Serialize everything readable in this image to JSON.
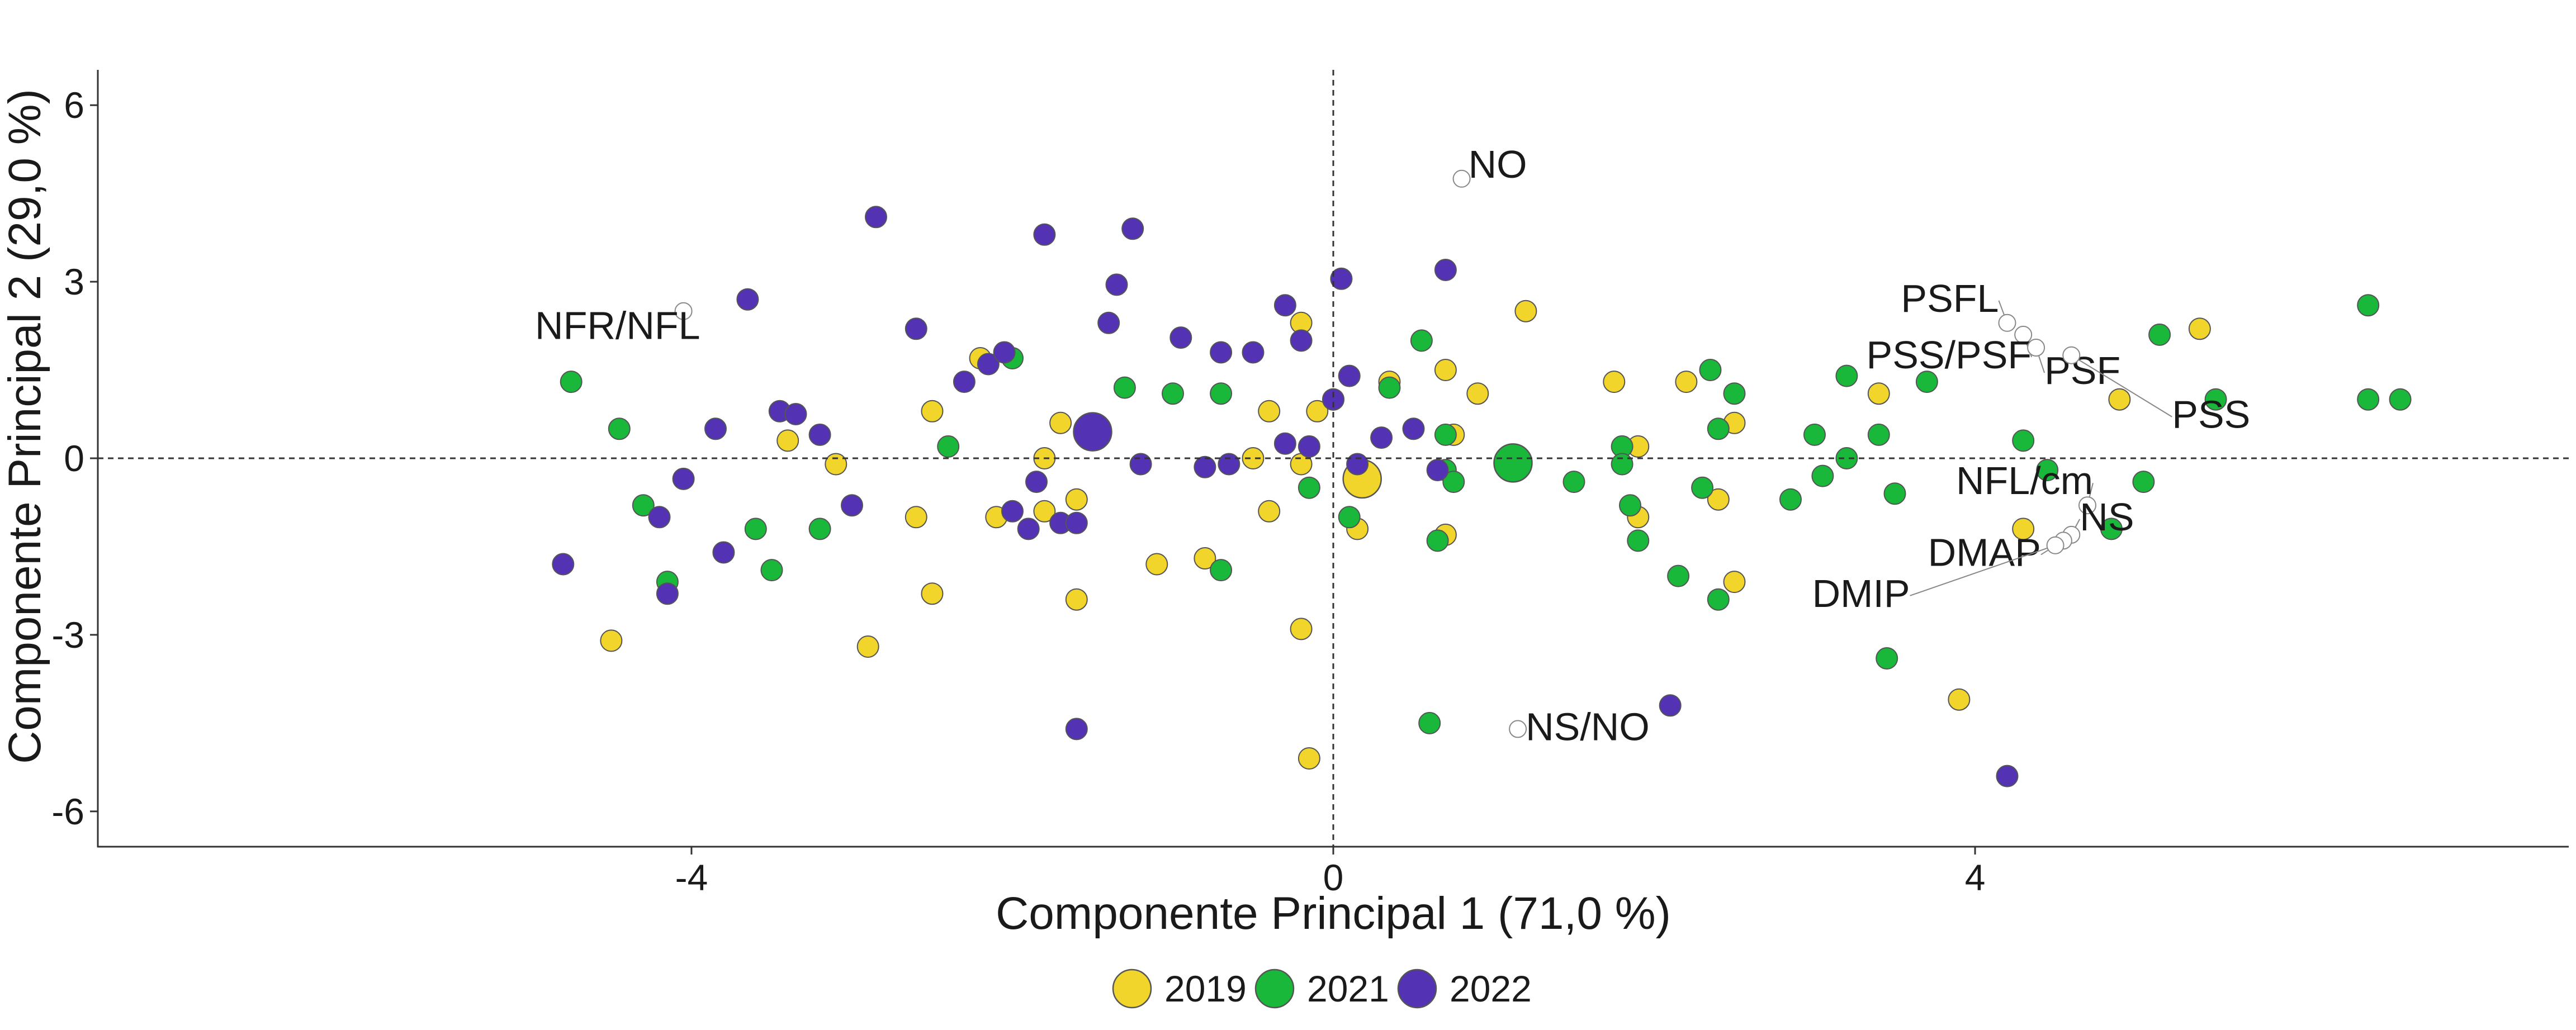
{
  "chart_data": {
    "type": "scatter",
    "title": "",
    "xlabel": "Componente Principal 1 (71,0 %)",
    "ylabel": "Componente Principal 2 (29,0 %)",
    "xlim": [
      -7.7,
      7.7
    ],
    "ylim": [
      -6.6,
      6.6
    ],
    "xticks": [
      "-4",
      "0",
      "4"
    ],
    "yticks": [
      "6",
      "3",
      "0",
      "-3",
      "-6"
    ],
    "grid": false,
    "reference_lines": {
      "x": 0,
      "y": 0
    },
    "legend": {
      "position": "bottom",
      "entries": [
        "2019",
        "2021",
        "2022"
      ]
    },
    "colors": {
      "2019": "#F2D52B",
      "2021": "#19B83A",
      "2022": "#5432B4",
      "variable_marker": "#FFFFFF",
      "marker_stroke": "#555555"
    },
    "series": [
      {
        "name": "2019",
        "color": "#F2D52B",
        "centroid": [
          0.18,
          -0.35
        ],
        "points": [
          [
            -4.5,
            -3.1
          ],
          [
            -3.4,
            0.3
          ],
          [
            -3.1,
            -0.1
          ],
          [
            -2.9,
            -3.2
          ],
          [
            -2.6,
            -1.0
          ],
          [
            -2.5,
            0.8
          ],
          [
            -2.5,
            -2.3
          ],
          [
            -2.2,
            1.7
          ],
          [
            -2.1,
            -1.0
          ],
          [
            -1.8,
            -0.9
          ],
          [
            -1.8,
            0.0
          ],
          [
            -1.7,
            0.6
          ],
          [
            -1.6,
            -0.7
          ],
          [
            -1.6,
            -2.4
          ],
          [
            -1.1,
            -1.8
          ],
          [
            -0.8,
            -1.7
          ],
          [
            -0.5,
            0.0
          ],
          [
            -0.4,
            -0.9
          ],
          [
            -0.4,
            0.8
          ],
          [
            -0.2,
            2.3
          ],
          [
            -0.2,
            -0.1
          ],
          [
            -0.2,
            -2.9
          ],
          [
            -0.15,
            -5.1
          ],
          [
            -0.1,
            0.8
          ],
          [
            0.0,
            1.0
          ],
          [
            0.15,
            -1.2
          ],
          [
            0.35,
            1.3
          ],
          [
            0.7,
            1.5
          ],
          [
            0.7,
            -1.3
          ],
          [
            0.75,
            0.4
          ],
          [
            0.9,
            1.1
          ],
          [
            1.2,
            2.5
          ],
          [
            1.75,
            1.3
          ],
          [
            1.9,
            0.2
          ],
          [
            1.9,
            -1.0
          ],
          [
            2.2,
            1.3
          ],
          [
            2.4,
            -0.7
          ],
          [
            2.5,
            -2.1
          ],
          [
            2.5,
            0.6
          ],
          [
            3.4,
            1.1
          ],
          [
            3.9,
            -4.1
          ],
          [
            4.3,
            -1.2
          ],
          [
            4.9,
            1.0
          ],
          [
            5.4,
            2.2
          ]
        ]
      },
      {
        "name": "2021",
        "color": "#19B83A",
        "centroid": [
          1.12,
          -0.08
        ],
        "points": [
          [
            -4.75,
            1.3
          ],
          [
            -4.45,
            0.5
          ],
          [
            -4.3,
            -0.8
          ],
          [
            -4.15,
            -2.1
          ],
          [
            -3.6,
            -1.2
          ],
          [
            -3.5,
            -1.9
          ],
          [
            -3.2,
            -1.2
          ],
          [
            -2.4,
            0.2
          ],
          [
            -2.0,
            1.7
          ],
          [
            -1.3,
            1.2
          ],
          [
            -1.0,
            1.1
          ],
          [
            -0.7,
            1.1
          ],
          [
            -0.7,
            -1.9
          ],
          [
            -0.15,
            -0.5
          ],
          [
            0.1,
            -1.0
          ],
          [
            0.35,
            1.2
          ],
          [
            0.55,
            2.0
          ],
          [
            0.6,
            -4.5
          ],
          [
            0.65,
            -1.4
          ],
          [
            0.7,
            0.4
          ],
          [
            0.7,
            -0.2
          ],
          [
            0.75,
            -0.4
          ],
          [
            1.5,
            -0.4
          ],
          [
            1.8,
            0.2
          ],
          [
            1.8,
            -0.1
          ],
          [
            1.85,
            -0.8
          ],
          [
            1.9,
            -1.4
          ],
          [
            2.15,
            -2.0
          ],
          [
            2.3,
            -0.5
          ],
          [
            2.35,
            1.5
          ],
          [
            2.4,
            -2.4
          ],
          [
            2.4,
            0.5
          ],
          [
            2.5,
            1.1
          ],
          [
            2.85,
            -0.7
          ],
          [
            3.0,
            0.4
          ],
          [
            3.05,
            -0.3
          ],
          [
            3.2,
            1.4
          ],
          [
            3.2,
            0.0
          ],
          [
            3.4,
            0.4
          ],
          [
            3.45,
            -3.4
          ],
          [
            3.5,
            -0.6
          ],
          [
            3.7,
            1.3
          ],
          [
            4.3,
            0.3
          ],
          [
            4.45,
            -0.2
          ],
          [
            4.85,
            -1.2
          ],
          [
            5.05,
            -0.4
          ],
          [
            5.15,
            2.1
          ],
          [
            5.5,
            1.0
          ],
          [
            6.45,
            2.6
          ],
          [
            6.45,
            1.0
          ],
          [
            6.65,
            1.0
          ]
        ]
      },
      {
        "name": "2022",
        "color": "#5432B4",
        "centroid": [
          -1.5,
          0.45
        ],
        "points": [
          [
            -4.8,
            -1.8
          ],
          [
            -4.2,
            -1.0
          ],
          [
            -4.15,
            -2.3
          ],
          [
            -4.05,
            -0.35
          ],
          [
            -3.85,
            0.5
          ],
          [
            -3.8,
            -1.6
          ],
          [
            -3.65,
            2.7
          ],
          [
            -3.45,
            0.8
          ],
          [
            -3.35,
            0.75
          ],
          [
            -3.2,
            0.4
          ],
          [
            -3.0,
            -0.8
          ],
          [
            -2.85,
            4.1
          ],
          [
            -2.6,
            2.2
          ],
          [
            -2.3,
            1.3
          ],
          [
            -2.15,
            1.6
          ],
          [
            -2.05,
            1.8
          ],
          [
            -2.0,
            -0.9
          ],
          [
            -1.9,
            -1.2
          ],
          [
            -1.85,
            -0.4
          ],
          [
            -1.8,
            3.8
          ],
          [
            -1.7,
            -1.1
          ],
          [
            -1.6,
            -1.1
          ],
          [
            -1.6,
            -4.6
          ],
          [
            -1.4,
            2.3
          ],
          [
            -1.35,
            2.95
          ],
          [
            -1.25,
            3.9
          ],
          [
            -1.2,
            -0.1
          ],
          [
            -0.95,
            2.05
          ],
          [
            -0.8,
            -0.15
          ],
          [
            -0.7,
            1.8
          ],
          [
            -0.65,
            -0.1
          ],
          [
            -0.5,
            1.8
          ],
          [
            -0.3,
            2.6
          ],
          [
            -0.3,
            0.25
          ],
          [
            -0.2,
            2.0
          ],
          [
            -0.15,
            0.2
          ],
          [
            0.0,
            1.0
          ],
          [
            0.05,
            3.05
          ],
          [
            0.1,
            1.4
          ],
          [
            0.15,
            -0.1
          ],
          [
            0.3,
            0.35
          ],
          [
            0.5,
            0.5
          ],
          [
            0.65,
            -0.2
          ],
          [
            0.7,
            3.2
          ],
          [
            2.1,
            -4.2
          ],
          [
            4.2,
            -5.4
          ]
        ]
      }
    ],
    "variables": [
      {
        "label": "NO",
        "x": 0.8,
        "y": 4.75
      },
      {
        "label": "NFR/NFL",
        "x": -4.05,
        "y": 2.5
      },
      {
        "label": "PSFL",
        "x": 4.2,
        "y": 2.3
      },
      {
        "label": "PSS/PSF",
        "x": 4.3,
        "y": 2.1
      },
      {
        "label": "PSF",
        "x": 4.38,
        "y": 1.88
      },
      {
        "label": "PSS",
        "x": 4.6,
        "y": 1.75
      },
      {
        "label": "NFL/cm",
        "x": 4.7,
        "y": -0.8
      },
      {
        "label": "NS",
        "x": 4.6,
        "y": -1.3
      },
      {
        "label": "DMAP",
        "x": 4.55,
        "y": -1.4
      },
      {
        "label": "DMIP",
        "x": 4.5,
        "y": -1.48
      },
      {
        "label": "NS/NO",
        "x": 1.15,
        "y": -4.6
      }
    ]
  }
}
